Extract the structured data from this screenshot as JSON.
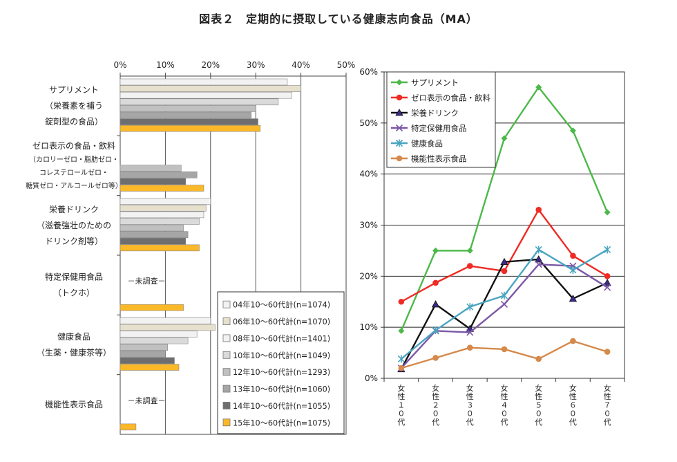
{
  "title": "図表２　定期的に摂取している健康志向食品（MA）",
  "chart_data": [
    {
      "type": "bar",
      "orientation": "horizontal",
      "xlim": [
        0,
        50
      ],
      "x_ticks": [
        "0%",
        "10%",
        "20%",
        "30%",
        "40%",
        "50%"
      ],
      "categories": [
        {
          "label_lines": [
            "サプリメント",
            "（栄養素を補う",
            "錠剤型の食品）"
          ]
        },
        {
          "label_lines": [
            "ゼロ表示の食品・飲料",
            "（カロリーゼロ・脂肪ゼロ・",
            "コレステロールゼロ・",
            "糖質ゼロ・アルコールゼロ等）"
          ]
        },
        {
          "label_lines": [
            "栄養ドリンク",
            "（滋養強壮のための",
            "ドリンク剤等）"
          ]
        },
        {
          "label_lines": [
            "特定保健用食品",
            "（トクホ）"
          ],
          "note": "－未調査－"
        },
        {
          "label_lines": [
            "健康食品",
            "（生薬・健康茶等）"
          ]
        },
        {
          "label_lines": [
            "機能性表示食品"
          ],
          "note": "－未調査－"
        }
      ],
      "series": [
        {
          "name": "04年10～60代計(n=1074)",
          "color": "#f2f2f2",
          "values": [
            37,
            null,
            20,
            null,
            20,
            null
          ]
        },
        {
          "name": "06年10～60代計(n=1070)",
          "color": "#e6e0cc",
          "values": [
            40,
            null,
            19,
            null,
            21,
            null
          ]
        },
        {
          "name": "08年10～60代計(n=1401)",
          "color": "#f2f2f2",
          "values": [
            38,
            null,
            18.5,
            null,
            17,
            null
          ]
        },
        {
          "name": "10年10～60代計(n=1049)",
          "color": "#dadada",
          "values": [
            35,
            null,
            17.5,
            null,
            15,
            null
          ]
        },
        {
          "name": "12年10～60代計(n=1293)",
          "color": "#c0c0c0",
          "values": [
            30,
            13.5,
            14,
            null,
            10.5,
            null
          ]
        },
        {
          "name": "13年10～60代計(n=1060)",
          "color": "#a6a6a6",
          "values": [
            29,
            17,
            15,
            null,
            10,
            null
          ]
        },
        {
          "name": "14年10～60代計(n=1055)",
          "color": "#6e6e6e",
          "values": [
            30.5,
            14.5,
            14.5,
            null,
            12,
            null
          ]
        },
        {
          "name": "15年10～60代計(n=1075)",
          "color": "#fbb829",
          "values": [
            31,
            18.5,
            17.5,
            14,
            13,
            3.5
          ]
        }
      ]
    },
    {
      "type": "line",
      "ylim": [
        0,
        60
      ],
      "y_ticks": [
        "0%",
        "10%",
        "20%",
        "30%",
        "40%",
        "50%",
        "60%"
      ],
      "categories": [
        "女性１０代",
        "女性２０代",
        "女性３０代",
        "女性４０代",
        "女性５０代",
        "女性６０代",
        "女性７０代"
      ],
      "series": [
        {
          "name": "サプリメント",
          "color": "#4cb849",
          "marker": "diamond",
          "values": [
            9.3,
            25,
            25,
            47,
            57,
            48.5,
            32.5
          ]
        },
        {
          "name": "ゼロ表示の食品・飲料",
          "color": "#ef2b24",
          "marker": "circle",
          "values": [
            15,
            18.7,
            22,
            21,
            33,
            24,
            20
          ]
        },
        {
          "name": "栄養ドリンク",
          "color": "#111111",
          "marker": "triangle",
          "values": [
            1.8,
            14.5,
            9.7,
            22.8,
            23.3,
            15.6,
            18.7
          ]
        },
        {
          "name": "特定保健用食品",
          "color": "#7b57a6",
          "marker": "x",
          "values": [
            2,
            9.3,
            9,
            14.5,
            22.3,
            22,
            17.8
          ]
        },
        {
          "name": "健康食品",
          "color": "#4aa5c0",
          "marker": "star",
          "values": [
            3.8,
            9.4,
            14,
            16.2,
            25.2,
            21.2,
            25.2
          ]
        },
        {
          "name": "機能性表示食品",
          "color": "#d5894a",
          "marker": "circle",
          "values": [
            2,
            4,
            6,
            5.7,
            3.8,
            7.3,
            5.2
          ]
        }
      ]
    }
  ]
}
